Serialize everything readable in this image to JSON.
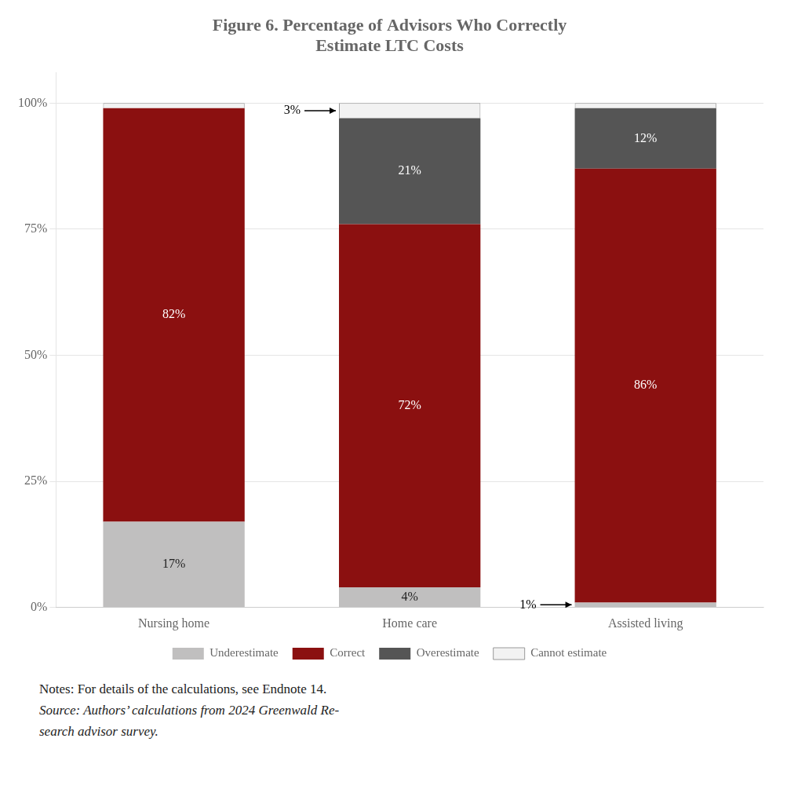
{
  "chart_data": {
    "type": "bar",
    "title": [
      "Figure 6. Percentage of Advisors Who Correctly",
      "Estimate LTC Costs"
    ],
    "categories": [
      "Nursing home",
      "Home care",
      "Assisted living"
    ],
    "series": [
      {
        "name": "Underestimate",
        "color": "#c0bfbf",
        "values": [
          17,
          4,
          1
        ],
        "value_labels": [
          "17%",
          "4%",
          "1%"
        ]
      },
      {
        "name": "Correct",
        "color": "#8b1010",
        "values": [
          82,
          72,
          86
        ],
        "value_labels": [
          "82%",
          "72%",
          "86%"
        ]
      },
      {
        "name": "Overestimate",
        "color": "#555555",
        "values": [
          0,
          21,
          12
        ],
        "value_labels": [
          null,
          "21%",
          "12%"
        ]
      },
      {
        "name": "Cannot estimate",
        "color": "#f2f2f2",
        "values": [
          1,
          3,
          1
        ],
        "value_labels": [
          null,
          "3%",
          null
        ]
      }
    ],
    "stacked": true,
    "data_labels": true,
    "ylim": [
      0,
      106
    ],
    "yticks": [
      {
        "value": 0,
        "label": "0%"
      },
      {
        "value": 25,
        "label": "25%"
      },
      {
        "value": 50,
        "label": "50%"
      },
      {
        "value": 75,
        "label": "75%"
      },
      {
        "value": 100,
        "label": "100%"
      }
    ],
    "grid": true,
    "legend": "bottom",
    "notes": [
      "Notes: For details of the calculations, see Endnote 14.",
      "Source: Authors’ calculations from 2024 Greenwald Re-",
      "search advisor survey."
    ]
  }
}
